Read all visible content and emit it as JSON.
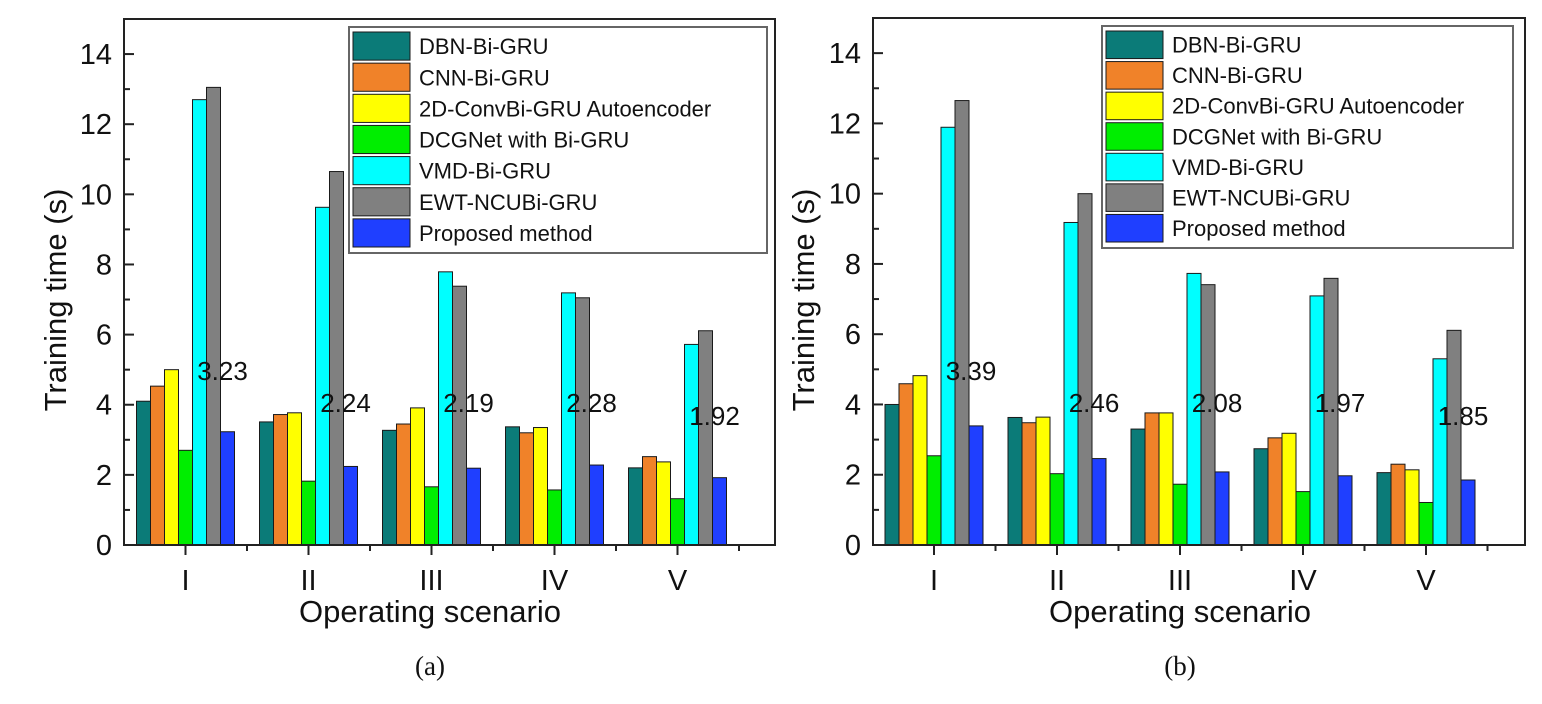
{
  "chart_data": [
    {
      "type": "bar",
      "panel": "a",
      "caption": "(a)",
      "title": "",
      "xlabel": "Operating scenario",
      "ylabel": "Training time (s)",
      "ylim": [
        0,
        15
      ],
      "yticks": [
        0,
        2,
        4,
        6,
        8,
        10,
        12,
        14
      ],
      "ytick_labels": [
        "0",
        "2",
        "4",
        "6",
        "8",
        "10",
        "12",
        "14"
      ],
      "grid": false,
      "legend_position": "top-right",
      "categories": [
        "I",
        "II",
        "III",
        "IV",
        "V"
      ],
      "series": [
        {
          "name": "DBN-Bi-GRU",
          "color": "#0b7b78",
          "values": [
            4.1,
            3.51,
            3.27,
            3.37,
            2.2
          ]
        },
        {
          "name": "CNN-Bi-GRU",
          "color": "#f08229",
          "values": [
            4.53,
            3.72,
            3.45,
            3.2,
            2.52
          ]
        },
        {
          "name": "2D-ConvBi-GRU Autoencoder",
          "color": "#ffff00",
          "values": [
            5.0,
            3.77,
            3.91,
            3.35,
            2.37
          ]
        },
        {
          "name": "DCGNet with Bi-GRU",
          "color": "#00ee00",
          "values": [
            2.7,
            1.82,
            1.66,
            1.57,
            1.32
          ]
        },
        {
          "name": "VMD-Bi-GRU",
          "color": "#00ffff",
          "values": [
            12.7,
            9.63,
            7.79,
            7.19,
            5.72
          ]
        },
        {
          "name": "EWT-NCUBi-GRU",
          "color": "#808080",
          "values": [
            13.05,
            10.65,
            7.38,
            7.05,
            6.11
          ]
        },
        {
          "name": "Proposed method",
          "color": "#1f3fff",
          "values": [
            3.23,
            2.24,
            2.19,
            2.28,
            1.92
          ]
        }
      ],
      "annotations": [
        "3.23",
        "2.24",
        "2.19",
        "2.28",
        "1.92"
      ]
    },
    {
      "type": "bar",
      "panel": "b",
      "caption": "(b)",
      "title": "",
      "xlabel": "Operating scenario",
      "ylabel": "Training time (s)",
      "ylim": [
        0,
        15
      ],
      "yticks": [
        0,
        2,
        4,
        6,
        8,
        10,
        12,
        14
      ],
      "ytick_labels": [
        "0",
        "2",
        "4",
        "6",
        "8",
        "10",
        "12",
        "14"
      ],
      "grid": false,
      "legend_position": "top-right",
      "categories": [
        "I",
        "II",
        "III",
        "IV",
        "V"
      ],
      "series": [
        {
          "name": "DBN-Bi-GRU",
          "color": "#0b7b78",
          "values": [
            4.0,
            3.63,
            3.3,
            2.74,
            2.06
          ]
        },
        {
          "name": "CNN-Bi-GRU",
          "color": "#f08229",
          "values": [
            4.59,
            3.48,
            3.76,
            3.05,
            2.3
          ]
        },
        {
          "name": "2D-ConvBi-GRU Autoencoder",
          "color": "#ffff00",
          "values": [
            4.82,
            3.64,
            3.76,
            3.18,
            2.14
          ]
        },
        {
          "name": "DCGNet with Bi-GRU",
          "color": "#00ee00",
          "values": [
            2.54,
            2.03,
            1.73,
            1.52,
            1.21
          ]
        },
        {
          "name": "VMD-Bi-GRU",
          "color": "#00ffff",
          "values": [
            11.89,
            9.18,
            7.73,
            7.09,
            5.3
          ]
        },
        {
          "name": "EWT-NCUBi-GRU",
          "color": "#808080",
          "values": [
            12.65,
            10.0,
            7.41,
            7.59,
            6.11
          ]
        },
        {
          "name": "Proposed method",
          "color": "#1f3fff",
          "values": [
            3.39,
            2.46,
            2.08,
            1.97,
            1.85
          ]
        }
      ],
      "annotations": [
        "3.39",
        "2.46",
        "2.08",
        "1.97",
        "1.85"
      ]
    }
  ]
}
